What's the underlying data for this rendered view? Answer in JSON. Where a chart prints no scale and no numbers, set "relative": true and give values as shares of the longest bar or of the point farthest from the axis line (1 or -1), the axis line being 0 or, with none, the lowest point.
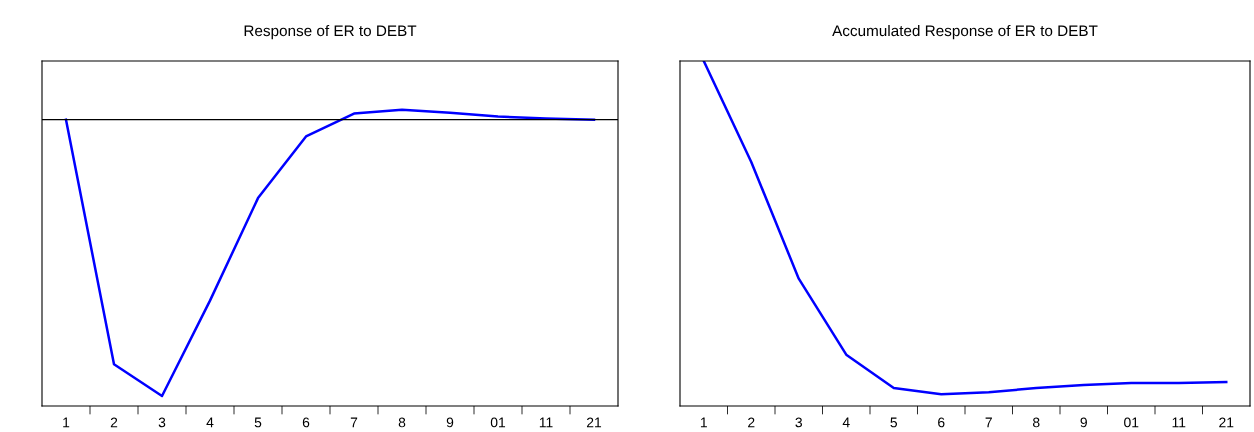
{
  "chart_data": [
    {
      "type": "line",
      "title": "Response of ER to DEBT",
      "relative": true,
      "categories": [
        "1",
        "2",
        "3",
        "4",
        "5",
        "6",
        "7",
        "8",
        "9",
        "01",
        "11",
        "21"
      ],
      "series": [
        {
          "color": "#0000ff",
          "values": [
            0,
            -0.885,
            -1,
            -0.655,
            -0.284,
            -0.061,
            0.022,
            0.036,
            0.025,
            0.011,
            0.004,
            0
          ]
        }
      ],
      "ref_lines": [
        {
          "axis": "y",
          "value": 0,
          "color": "#000000"
        }
      ],
      "grid": false,
      "legend": false
    },
    {
      "type": "line",
      "title": "Accumulated Response of ER to DEBT",
      "relative": true,
      "categories": [
        "1",
        "2",
        "3",
        "4",
        "5",
        "6",
        "7",
        "8",
        "9",
        "01",
        "11",
        "21"
      ],
      "series": [
        {
          "color": "#0000ff",
          "values": [
            0,
            -0.303,
            -0.653,
            -0.881,
            -0.981,
            -1,
            -0.994,
            -0.981,
            -0.972,
            -0.966,
            -0.966,
            -0.963
          ]
        }
      ],
      "grid": false,
      "legend": false
    }
  ]
}
